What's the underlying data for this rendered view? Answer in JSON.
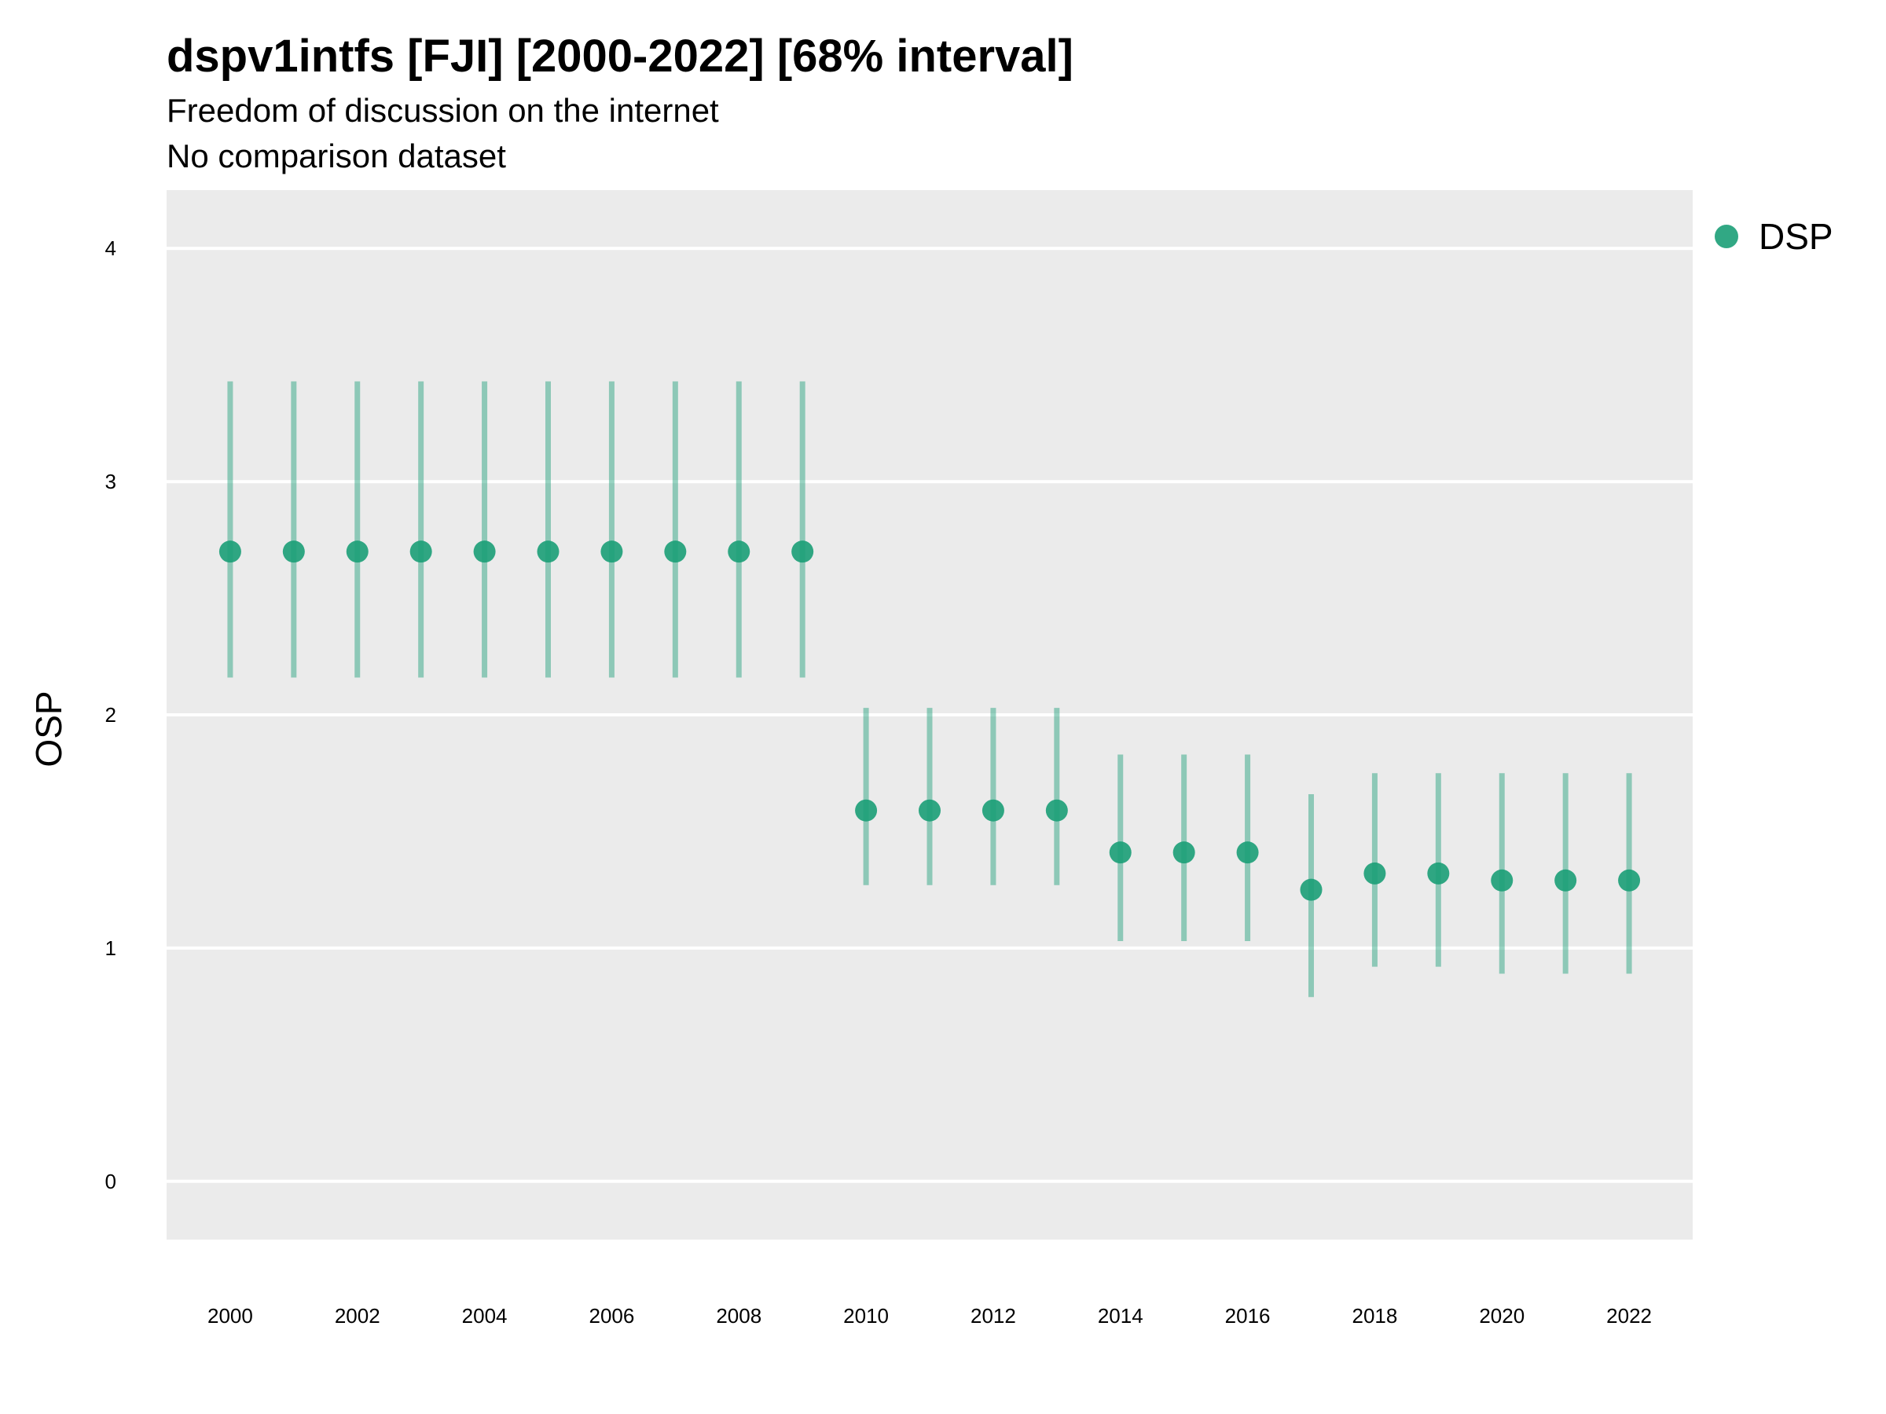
{
  "title": "dspv1intfs [FJI] [2000-2022] [68% interval]",
  "subtitle": "Freedom of discussion on the internet",
  "subtitle2": "No comparison dataset",
  "chart_data": {
    "type": "scatter",
    "ylabel": "OSP",
    "xlabel": "",
    "ylim": [
      -0.25,
      4.25
    ],
    "xlim": [
      1999,
      2023
    ],
    "yticks": [
      0,
      1,
      2,
      3,
      4
    ],
    "xticks": [
      2000,
      2002,
      2004,
      2006,
      2008,
      2010,
      2012,
      2014,
      2016,
      2018,
      2020,
      2022
    ],
    "grid": true,
    "legend_position": "right",
    "series": [
      {
        "name": "DSP",
        "color": "#1b9e77",
        "points": [
          {
            "x": 2000,
            "y": 2.7,
            "lo": 2.16,
            "hi": 3.43
          },
          {
            "x": 2001,
            "y": 2.7,
            "lo": 2.16,
            "hi": 3.43
          },
          {
            "x": 2002,
            "y": 2.7,
            "lo": 2.16,
            "hi": 3.43
          },
          {
            "x": 2003,
            "y": 2.7,
            "lo": 2.16,
            "hi": 3.43
          },
          {
            "x": 2004,
            "y": 2.7,
            "lo": 2.16,
            "hi": 3.43
          },
          {
            "x": 2005,
            "y": 2.7,
            "lo": 2.16,
            "hi": 3.43
          },
          {
            "x": 2006,
            "y": 2.7,
            "lo": 2.16,
            "hi": 3.43
          },
          {
            "x": 2007,
            "y": 2.7,
            "lo": 2.16,
            "hi": 3.43
          },
          {
            "x": 2008,
            "y": 2.7,
            "lo": 2.16,
            "hi": 3.43
          },
          {
            "x": 2009,
            "y": 2.7,
            "lo": 2.16,
            "hi": 3.43
          },
          {
            "x": 2010,
            "y": 1.59,
            "lo": 1.27,
            "hi": 2.03
          },
          {
            "x": 2011,
            "y": 1.59,
            "lo": 1.27,
            "hi": 2.03
          },
          {
            "x": 2012,
            "y": 1.59,
            "lo": 1.27,
            "hi": 2.03
          },
          {
            "x": 2013,
            "y": 1.59,
            "lo": 1.27,
            "hi": 2.03
          },
          {
            "x": 2014,
            "y": 1.41,
            "lo": 1.03,
            "hi": 1.83
          },
          {
            "x": 2015,
            "y": 1.41,
            "lo": 1.03,
            "hi": 1.83
          },
          {
            "x": 2016,
            "y": 1.41,
            "lo": 1.03,
            "hi": 1.83
          },
          {
            "x": 2017,
            "y": 1.25,
            "lo": 0.79,
            "hi": 1.66
          },
          {
            "x": 2018,
            "y": 1.32,
            "lo": 0.92,
            "hi": 1.75
          },
          {
            "x": 2019,
            "y": 1.32,
            "lo": 0.92,
            "hi": 1.75
          },
          {
            "x": 2020,
            "y": 1.29,
            "lo": 0.89,
            "hi": 1.75
          },
          {
            "x": 2021,
            "y": 1.29,
            "lo": 0.89,
            "hi": 1.75
          },
          {
            "x": 2022,
            "y": 1.29,
            "lo": 0.89,
            "hi": 1.75
          }
        ]
      }
    ]
  }
}
